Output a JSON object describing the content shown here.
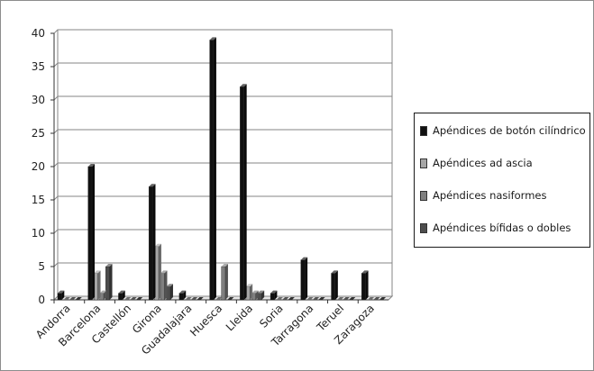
{
  "chart_data": {
    "type": "bar",
    "title": "",
    "xlabel": "",
    "ylabel": "",
    "ylim": [
      0,
      40
    ],
    "yticks": [
      0,
      5,
      10,
      15,
      20,
      25,
      30,
      35,
      40
    ],
    "grid": true,
    "legend_position": "right",
    "categories": [
      "Andorra",
      "Barcelona",
      "Castellón",
      "Girona",
      "Guadalajara",
      "Huesca",
      "Lleida",
      "Soria",
      "Tarragona",
      "Teruel",
      "Zaragoza"
    ],
    "series": [
      {
        "name": "Apéndices de botón cilíndrico",
        "color": "#111111",
        "values": [
          1,
          20,
          1,
          17,
          1,
          39,
          32,
          1,
          6,
          4,
          4
        ]
      },
      {
        "name": "Apéndices ad ascia",
        "color": "#a6a6a6",
        "values": [
          0,
          4,
          0,
          8,
          0,
          0,
          2,
          0,
          0,
          0,
          0
        ]
      },
      {
        "name": "Apéndices nasiformes",
        "color": "#7f7f7f",
        "values": [
          0,
          1,
          0,
          4,
          0,
          5,
          1,
          0,
          0,
          0,
          0
        ]
      },
      {
        "name": "Apéndices bífidas o dobles",
        "color": "#4d4d4d",
        "values": [
          0,
          5,
          0,
          2,
          0,
          0,
          1,
          0,
          0,
          0,
          0
        ]
      }
    ]
  }
}
